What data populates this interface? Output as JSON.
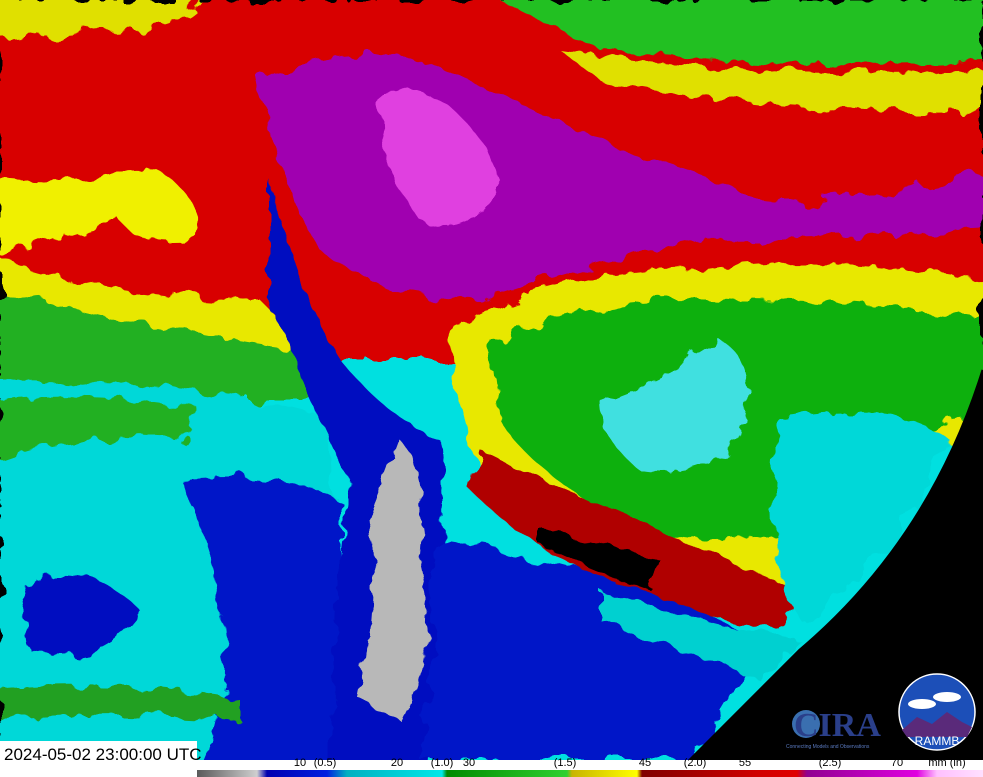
{
  "timestamp": "2024-05-02 23:00:00 UTC",
  "legend": {
    "ticks": [
      "10",
      "(0.5)",
      "20",
      "(1.0)",
      "30",
      "(1.5)",
      "45",
      "(2.0)",
      "55",
      "(2.5)",
      "70",
      "mm (in)"
    ],
    "colors": {
      "gray": "#b0b0b0",
      "blue": "#0010d0",
      "cyan": "#00e0e0",
      "green": "#10b010",
      "yellow": "#ffff00",
      "red": "#e00000",
      "purple": "#c000c0",
      "pink": "#ffc0ff"
    }
  },
  "logos": {
    "cira": "CIRA",
    "cira_tagline": "Connecting Models and Observations",
    "rammb": "RAMMB",
    "rammb_ring": "Regional and Mesoscale Meteorology Branch"
  }
}
